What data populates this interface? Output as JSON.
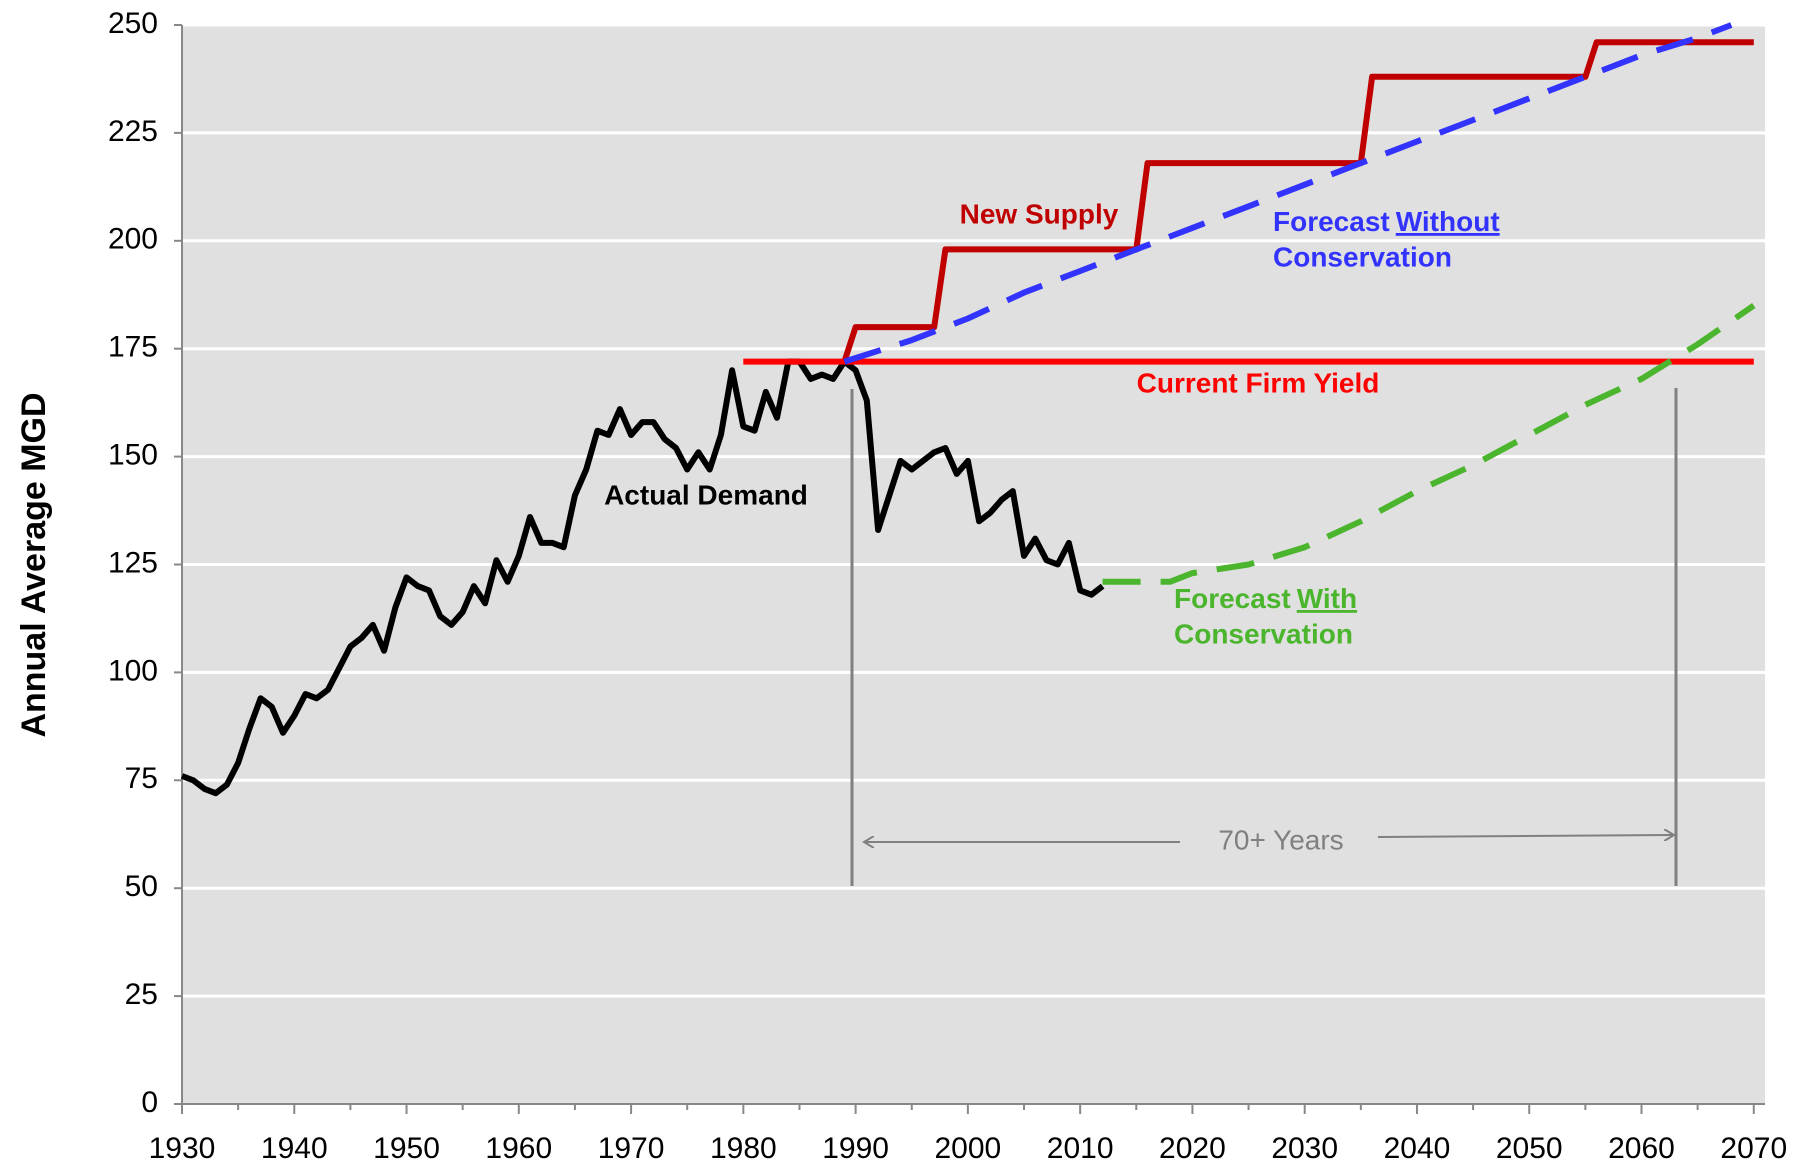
{
  "chart_data": {
    "type": "line",
    "y_label": "Annual Average MGD",
    "xlim": [
      1930,
      2071
    ],
    "xticks": [
      1930,
      1940,
      1950,
      1960,
      1970,
      1980,
      1990,
      2000,
      2010,
      2020,
      2030,
      2040,
      2050,
      2060,
      2070
    ],
    "ylim": [
      0,
      250
    ],
    "yticks": [
      0,
      25,
      50,
      75,
      100,
      125,
      150,
      175,
      200,
      225,
      250
    ],
    "grid": true,
    "series": [
      {
        "label": "Actual Demand",
        "color": "#000000",
        "dashed": false,
        "x": [
          1930,
          1931,
          1932,
          1933,
          1934,
          1935,
          1936,
          1937,
          1938,
          1939,
          1940,
          1941,
          1942,
          1943,
          1944,
          1945,
          1946,
          1947,
          1948,
          1949,
          1950,
          1951,
          1952,
          1953,
          1954,
          1955,
          1956,
          1957,
          1958,
          1959,
          1960,
          1961,
          1962,
          1963,
          1964,
          1965,
          1966,
          1967,
          1968,
          1969,
          1970,
          1971,
          1972,
          1973,
          1974,
          1975,
          1976,
          1977,
          1978,
          1979,
          1980,
          1981,
          1982,
          1983,
          1984,
          1985,
          1986,
          1987,
          1988,
          1989,
          1990,
          1991,
          1992,
          1993,
          1994,
          1995,
          1996,
          1997,
          1998,
          1999,
          2000,
          2001,
          2002,
          2003,
          2004,
          2005,
          2006,
          2007,
          2008,
          2009,
          2010,
          2011,
          2012
        ],
        "values": [
          76,
          75,
          73,
          72,
          74,
          79,
          87,
          94,
          92,
          86,
          90,
          95,
          94,
          96,
          101,
          106,
          108,
          111,
          105,
          115,
          122,
          120,
          119,
          113,
          111,
          114,
          120,
          116,
          126,
          121,
          127,
          136,
          130,
          130,
          129,
          141,
          147,
          156,
          155,
          161,
          155,
          158,
          158,
          154,
          152,
          147,
          151,
          147,
          155,
          170,
          157,
          156,
          165,
          159,
          172,
          172,
          168,
          169,
          168,
          172,
          170,
          163,
          133,
          141,
          149,
          147,
          149,
          151,
          152,
          146,
          149,
          135,
          137,
          140,
          142,
          127,
          131,
          126,
          125,
          130,
          119,
          118,
          120
        ]
      },
      {
        "label": "New Supply",
        "color": "#c00000",
        "dashed": false,
        "x": [
          1989,
          1990,
          1997,
          1998,
          2015,
          2016,
          2035,
          2036,
          2055,
          2056,
          2070
        ],
        "values": [
          172,
          180,
          180,
          198,
          198,
          218,
          218,
          238,
          238,
          246,
          246
        ]
      },
      {
        "label": "Current Firm Yield",
        "color": "#ff0000",
        "dashed": false,
        "x": [
          1980,
          2070
        ],
        "values": [
          172,
          172
        ]
      },
      {
        "label": [
          "Forecast",
          "Without",
          "Conservation"
        ],
        "underline_part": 1,
        "color": "#3333ff",
        "dashed": true,
        "x": [
          1989,
          1995,
          2000,
          2005,
          2010,
          2015,
          2020,
          2025,
          2030,
          2035,
          2040,
          2045,
          2050,
          2055,
          2060,
          2065,
          2068
        ],
        "values": [
          172,
          177,
          182,
          188,
          193,
          198,
          203,
          208,
          213,
          218,
          223,
          228,
          233,
          238,
          243,
          247,
          250
        ]
      },
      {
        "label": [
          "Forecast",
          "With",
          "Conservation"
        ],
        "underline_part": 1,
        "color": "#4cb52e",
        "dashed": true,
        "x": [
          2012,
          2015,
          2018,
          2020,
          2025,
          2030,
          2035,
          2040,
          2045,
          2050,
          2055,
          2060,
          2065,
          2070
        ],
        "values": [
          121,
          121,
          121,
          123,
          125,
          129,
          135,
          142,
          148,
          155,
          162,
          168,
          176,
          185
        ]
      }
    ],
    "annotation": "70+ Years"
  }
}
